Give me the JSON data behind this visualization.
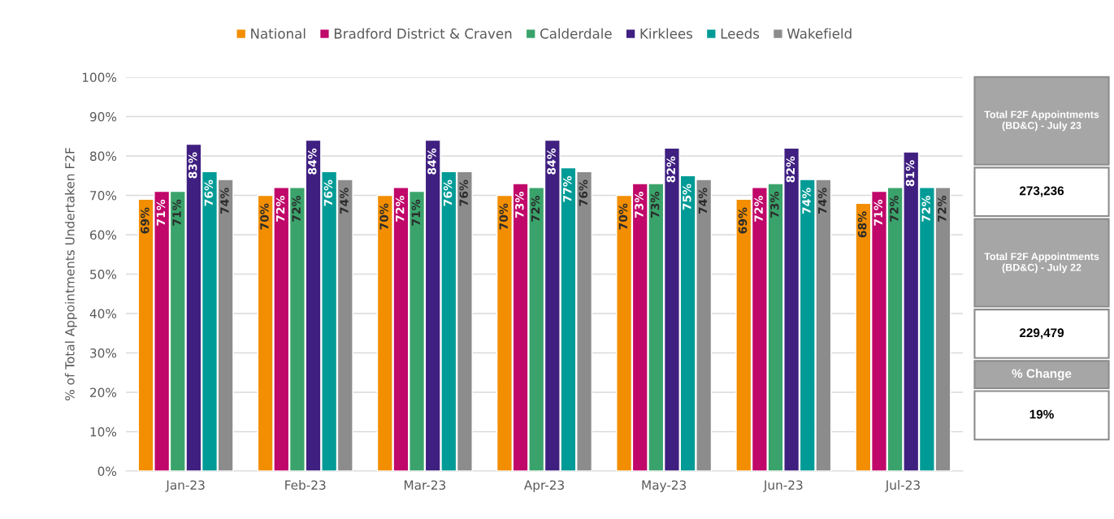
{
  "chart_data": [
    {
      "type": "bar",
      "ylabel": "% of Total Appointments Undertaken F2F",
      "categories": [
        "Jan-23",
        "Feb-23",
        "Mar-23",
        "Apr-23",
        "May-23",
        "Jun-23",
        "Jul-23"
      ],
      "series": [
        {
          "name": "National",
          "color": "#f28e00",
          "values": [
            69,
            70,
            70,
            70,
            70,
            69,
            68
          ],
          "value_labels": [
            "69%",
            "70%",
            "70%",
            "70%",
            "70%",
            "69%",
            "68%"
          ]
        },
        {
          "name": "Bradford District & Craven",
          "color": "#c0076a",
          "values": [
            71,
            72,
            72,
            73,
            73,
            72,
            71
          ],
          "value_labels": [
            "71%",
            "72%",
            "72%",
            "73%",
            "73%",
            "72%",
            "71%"
          ]
        },
        {
          "name": "Calderdale",
          "color": "#3aa36b",
          "values": [
            71,
            72,
            71,
            72,
            73,
            73,
            72
          ],
          "value_labels": [
            "71%",
            "72%",
            "71%",
            "72%",
            "73%",
            "73%",
            "72%"
          ]
        },
        {
          "name": "Kirklees",
          "color": "#3f1f80",
          "values": [
            83,
            84,
            84,
            84,
            82,
            82,
            81
          ],
          "value_labels": [
            "83%",
            "84%",
            "84%",
            "84%",
            "82%",
            "82%",
            "81%"
          ]
        },
        {
          "name": "Leeds",
          "color": "#009b96",
          "values": [
            76,
            76,
            76,
            77,
            75,
            74,
            72
          ],
          "value_labels": [
            "76%",
            "76%",
            "76%",
            "77%",
            "75%",
            "74%",
            "72%"
          ]
        },
        {
          "name": "Wakefield",
          "color": "#8c8c8c",
          "values": [
            74,
            74,
            76,
            76,
            74,
            74,
            72
          ],
          "value_labels": [
            "74%",
            "74%",
            "76%",
            "76%",
            "74%",
            "74%",
            "72%"
          ]
        }
      ],
      "ylim": [
        0,
        100
      ],
      "yticks": [
        {
          "value": 0,
          "label": "0%"
        },
        {
          "value": 10,
          "label": "10%"
        },
        {
          "value": 20,
          "label": "20%"
        },
        {
          "value": 30,
          "label": "30%"
        },
        {
          "value": 40,
          "label": "40%"
        },
        {
          "value": 50,
          "label": "50%"
        },
        {
          "value": 60,
          "label": "60%"
        },
        {
          "value": 70,
          "label": "70%"
        },
        {
          "value": 80,
          "label": "80%"
        },
        {
          "value": 90,
          "label": "90%"
        },
        {
          "value": 100,
          "label": "100%"
        }
      ],
      "grid": "y",
      "legend": "top"
    },
    {
      "type": "other",
      "annotations": [
        "Total F2F Appointments (BD&C) - July 23",
        "273,236",
        "Total F2F Appointments (BD&C) - July 22",
        "229,479",
        "% Change",
        "19%"
      ]
    }
  ]
}
